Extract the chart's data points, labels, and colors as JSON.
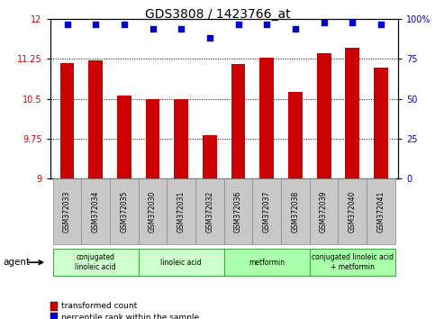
{
  "title": "GDS3808 / 1423766_at",
  "categories": [
    "GSM372033",
    "GSM372034",
    "GSM372035",
    "GSM372030",
    "GSM372031",
    "GSM372032",
    "GSM372036",
    "GSM372037",
    "GSM372038",
    "GSM372039",
    "GSM372040",
    "GSM372041"
  ],
  "bar_values": [
    11.18,
    11.23,
    10.57,
    10.5,
    10.5,
    9.82,
    11.16,
    11.28,
    10.63,
    11.36,
    11.47,
    11.09
  ],
  "percentile_values": [
    97,
    97,
    97,
    94,
    94,
    88,
    97,
    97,
    94,
    98,
    98,
    97
  ],
  "bar_color": "#cc0000",
  "percentile_color": "#0000cc",
  "ylim_left": [
    9,
    12
  ],
  "ylim_right": [
    0,
    100
  ],
  "yticks_left": [
    9,
    9.75,
    10.5,
    11.25,
    12
  ],
  "yticks_right": [
    0,
    25,
    50,
    75,
    100
  ],
  "ytick_labels_right": [
    "0",
    "25",
    "50",
    "75",
    "100%"
  ],
  "agent_groups": [
    {
      "label": "conjugated\nlinoleic acid",
      "span": [
        0,
        2
      ],
      "color": "#ccffcc"
    },
    {
      "label": "linoleic acid",
      "span": [
        3,
        5
      ],
      "color": "#ccffcc"
    },
    {
      "label": "metformin",
      "span": [
        6,
        8
      ],
      "color": "#aaffaa"
    },
    {
      "label": "conjugated linoleic acid\n+ metformin",
      "span": [
        9,
        11
      ],
      "color": "#aaffaa"
    }
  ],
  "legend_items": [
    {
      "label": "transformed count",
      "color": "#cc0000"
    },
    {
      "label": "percentile rank within the sample",
      "color": "#0000cc"
    }
  ],
  "agent_label": "agent",
  "title_fontsize": 10,
  "tick_fontsize": 7,
  "bar_width": 0.5,
  "xlim": [
    -0.6,
    11.6
  ]
}
